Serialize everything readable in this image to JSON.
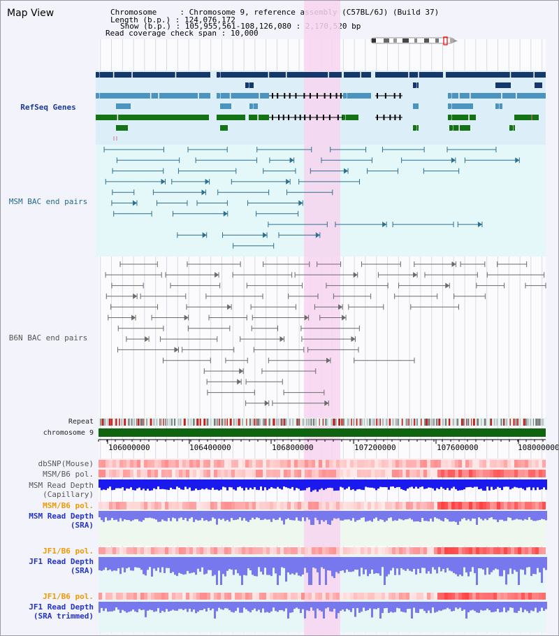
{
  "view_title": "Map View",
  "info": {
    "chromosome_label": "Chromosome",
    "chromosome_value": "Chromosome 9, reference assembly (C57BL/6J) (Build 37)",
    "length_label": "Length (b.p.)",
    "length_value": "124,076,172",
    "show_label": "Show (b.p.)",
    "show_value": "105,955,561-108,126,080 : 2,170,520 bp",
    "coverage_label": "Read coverage check span",
    "coverage_value": "10,000"
  },
  "tracks": {
    "refseq": "RefSeq Genes",
    "msm_bac": "MSM BAC end pairs",
    "b6n_bac": "B6N BAC end pairs",
    "repeat": "Repeat",
    "chromosome": "chromosome 9",
    "dbsnp": "dbSNP(Mouse)",
    "msm_b6_pol_1": "MSM/B6 pol.",
    "msm_depth_cap_1": "MSM Read Depth",
    "msm_depth_cap_2": "(Capillary)",
    "msm_b6_pol_2": "MSM/B6 pol.",
    "msm_depth_sra_1": "MSM Read Depth",
    "msm_depth_sra_2": "(SRA)",
    "jf1_pol": "JF1/B6 pol.",
    "jf1_depth_sra_1": "JF1 Read Depth",
    "jf1_depth_sra_2": "(SRA)",
    "jf1_pol_2": "JF1/B6 pol.",
    "jf1_depth_trim_1": "JF1 Read Depth",
    "jf1_depth_trim_2": "(SRA trimmed)"
  },
  "axis_ticks": [
    "106000000",
    "106400000",
    "106800000",
    "107200000",
    "107600000",
    "108000000"
  ],
  "colors": {
    "highlight": "#f7d5f0",
    "refseq_dark": "#14386b",
    "refseq_mid": "#4a94bd",
    "refseq_green": "#147314",
    "bac_msm": "#2f6f8f",
    "bac_b6n": "#6a6a6a",
    "chromosome_bar": "#0f640f",
    "depth_blue": "#1a1aee",
    "depth_light": "#7777ee"
  }
}
